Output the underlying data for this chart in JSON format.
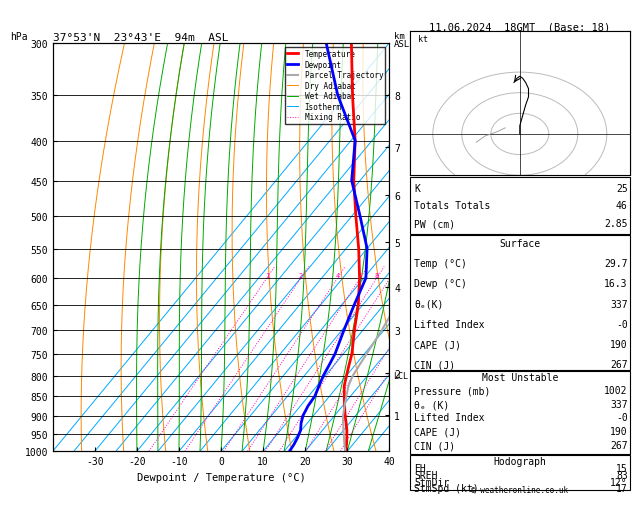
{
  "title_left": "37°53'N  23°43'E  94m  ASL",
  "title_right": "11.06.2024  18GMT  (Base: 18)",
  "xlabel": "Dewpoint / Temperature (°C)",
  "station_info": {
    "K": 25,
    "Totals_Totals": 46,
    "PW_cm": 2.85,
    "Surface_Temp": 29.7,
    "Surface_Dewp": 16.3,
    "Surface_Theta_e": 337,
    "Surface_CAPE": 190,
    "Surface_CIN": 267,
    "MU_Pressure": 1002,
    "MU_Theta_e": 337,
    "MU_CAPE": 190,
    "MU_CIN": 267,
    "Hodograph_EH": 15,
    "Hodograph_SREH": 83,
    "Hodograph_StmDir": 12,
    "Hodograph_StmSpd": 17
  },
  "pressure_ticks": [
    300,
    350,
    400,
    450,
    500,
    550,
    600,
    650,
    700,
    750,
    800,
    850,
    900,
    950,
    1000
  ],
  "temp_ticks": [
    -30,
    -20,
    -10,
    0,
    10,
    20,
    30,
    40
  ],
  "isotherm_temps": [
    -40,
    -35,
    -30,
    -25,
    -20,
    -15,
    -10,
    -5,
    0,
    5,
    10,
    15,
    20,
    25,
    30,
    35,
    40
  ],
  "isotherm_color": "#00aaff",
  "isotherm_linewidth": 0.7,
  "dry_adiabat_color": "#ff8800",
  "dry_adiabat_linewidth": 0.7,
  "wet_adiabat_color": "#00aa00",
  "wet_adiabat_linewidth": 0.7,
  "mixing_ratio_color": "#ff00bb",
  "mixing_ratio_linewidth": 0.7,
  "mixing_ratio_values": [
    1,
    2,
    4,
    6,
    8,
    10,
    15,
    20,
    25
  ],
  "km_ticks": [
    1,
    2,
    3,
    4,
    5,
    6,
    7,
    8
  ],
  "km_pressures": [
    898,
    795,
    700,
    616,
    540,
    470,
    408,
    350
  ],
  "LCL_pressure": 800,
  "temperature_data": {
    "pressure": [
      1002,
      980,
      960,
      940,
      920,
      900,
      875,
      850,
      825,
      800,
      775,
      750,
      700,
      650,
      600,
      550,
      500,
      450,
      400,
      350,
      300
    ],
    "temp": [
      29.7,
      28.5,
      27.2,
      25.8,
      24.2,
      22.5,
      20.5,
      18.5,
      16.5,
      15.0,
      13.5,
      12.0,
      8.0,
      4.0,
      -1.0,
      -7.0,
      -14.0,
      -21.5,
      -29.0,
      -38.5,
      -49.0
    ],
    "color": "#ff0000",
    "linewidth": 2.0
  },
  "dewpoint_data": {
    "pressure": [
      1002,
      980,
      960,
      940,
      920,
      900,
      875,
      850,
      825,
      800,
      775,
      750,
      700,
      650,
      600,
      550,
      500,
      450,
      400,
      350,
      300
    ],
    "temp": [
      16.3,
      16.0,
      15.5,
      14.8,
      13.5,
      12.5,
      11.8,
      11.5,
      10.5,
      9.5,
      8.8,
      8.0,
      5.5,
      3.0,
      0.5,
      -5.0,
      -13.0,
      -22.0,
      -29.0,
      -42.0,
      -55.0
    ],
    "color": "#0000ff",
    "linewidth": 2.0
  },
  "parcel_data": {
    "pressure": [
      1002,
      980,
      960,
      940,
      920,
      900,
      875,
      850,
      825,
      800,
      775,
      750,
      700,
      650,
      600,
      550,
      500,
      450,
      400,
      350,
      300
    ],
    "temp": [
      29.7,
      28.0,
      26.5,
      25.0,
      23.5,
      22.0,
      20.5,
      19.0,
      17.5,
      16.5,
      16.0,
      15.5,
      14.5,
      13.0,
      11.5,
      8.5,
      4.5,
      0.0,
      -5.5,
      -12.5,
      -20.5
    ],
    "color": "#aaaaaa",
    "linewidth": 1.5
  }
}
